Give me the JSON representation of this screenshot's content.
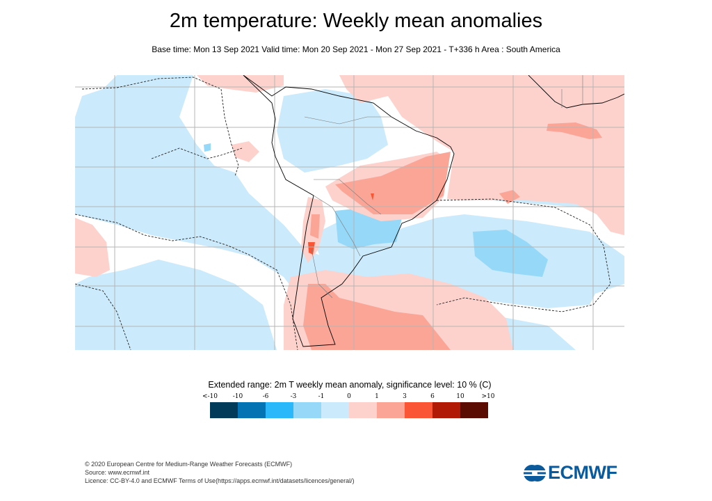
{
  "header": {
    "title": "2m temperature: Weekly mean anomalies",
    "subtitle": "Base time: Mon 13 Sep 2021 Valid time: Mon 20 Sep 2021 - Mon 27 Sep 2021 - T+336 h Area : South America"
  },
  "map": {
    "area": "South America",
    "colors": {
      "ocean_default": "#cbeafb",
      "light_blue": "#cbeafb",
      "mid_blue": "#96d8f8",
      "light_pink": "#fdd2cc",
      "mid_pink": "#fba597",
      "red": "#fa5635"
    }
  },
  "legend": {
    "title": "Extended range: 2m T weekly mean anomaly, significance level: 10 % (C)",
    "labels": [
      "<-10",
      "-10",
      "-6",
      "-3",
      "-1",
      "0",
      "1",
      "3",
      "6",
      "10",
      ">10"
    ],
    "colors": [
      "#023a5a",
      "#0473b3",
      "#2bb8fb",
      "#96d8f8",
      "#cbeafb",
      "#fdd2cc",
      "#fba597",
      "#fa5635",
      "#b11b05",
      "#5a0b02"
    ]
  },
  "footer": {
    "line1": "© 2020 European Centre for Medium-Range Weather Forecasts (ECMWF)",
    "line2": "Source: www.ecmwf.int",
    "line3": "Licence: CC-BY-4.0 and ECMWF Terms of Use(https://apps.ecmwf.int/datasets/licences/general/)",
    "logo_text": "ECMWF"
  }
}
